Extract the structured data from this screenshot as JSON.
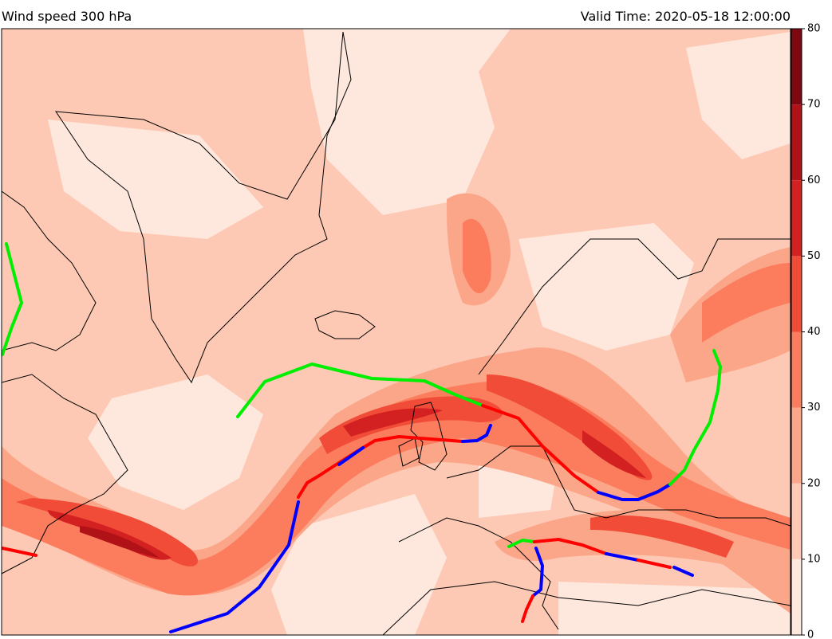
{
  "header": {
    "title": "Wind speed 300 hPa",
    "valid_time": "Valid Time: 2020-05-18 12:00:00"
  },
  "colorbar": {
    "lim": [
      0,
      80
    ],
    "ticks": [
      0,
      10,
      20,
      30,
      40,
      50,
      60,
      70,
      80
    ],
    "colors": [
      "#fee8dd",
      "#fdc9b4",
      "#fca689",
      "#fb7d5d",
      "#f14c37",
      "#d32020",
      "#b11218",
      "#7f0710"
    ]
  }
}
